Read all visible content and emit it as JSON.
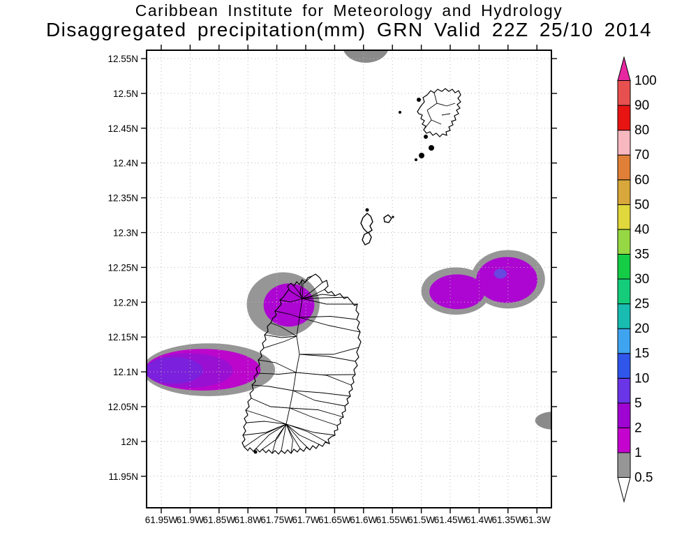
{
  "title": {
    "line1": "Caribbean Institute for Meteorology and Hydrology",
    "line2": "Disaggregated precipitation(mm) GRN Valid 22Z 25/10 2014"
  },
  "chart_data": {
    "type": "heatmap",
    "subtype": "shaded_contour_precipitation_map",
    "title": "Caribbean Institute for Meteorology and Hydrology",
    "subtitle": "Disaggregated precipitation(mm) GRN Valid 22Z 25/10 2014",
    "units": "mm",
    "grid": "dotted",
    "x_axis": {
      "labels": [
        "61.95W",
        "61.9W",
        "61.85W",
        "61.8W",
        "61.75W",
        "61.7W",
        "61.65W",
        "61.6W",
        "61.55W",
        "61.5W",
        "61.45W",
        "61.4W",
        "61.35W",
        "61.3W"
      ],
      "lon_west": [
        61.95,
        61.9,
        61.85,
        61.8,
        61.75,
        61.7,
        61.65,
        61.6,
        61.55,
        61.5,
        61.45,
        61.4,
        61.35,
        61.3
      ]
    },
    "y_axis": {
      "labels": [
        "12.55N",
        "12.5N",
        "12.45N",
        "12.4N",
        "12.35N",
        "12.3N",
        "12.25N",
        "12.2N",
        "12.15N",
        "12.1N",
        "12.05N",
        "12N",
        "11.95N"
      ],
      "lat_north": [
        12.55,
        12.5,
        12.45,
        12.4,
        12.35,
        12.3,
        12.25,
        12.2,
        12.15,
        12.1,
        12.05,
        12.0,
        11.95
      ]
    },
    "colorbar": {
      "position": "right",
      "levels": [
        "0.5",
        "1",
        "2",
        "5",
        "10",
        "15",
        "20",
        "25",
        "30",
        "35",
        "40",
        "50",
        "60",
        "70",
        "80",
        "90",
        "100"
      ],
      "colors": [
        "#969696",
        "#c404ce",
        "#a004d2",
        "#6a35e6",
        "#2f55ea",
        "#3fa4f0",
        "#18bcb0",
        "#14cc7a",
        "#14cc46",
        "#96d843",
        "#e0d83c",
        "#d8a83c",
        "#e08038",
        "#f8b8c0",
        "#e81414",
        "#e85050"
      ],
      "over_color": "#e628a0",
      "under_color": "#ffffff"
    },
    "shaded_regions": [
      {
        "name": "north-edge-trace",
        "layers": [
          {
            "level": "0.5-1",
            "color": "#8a8a8a",
            "ellipses": [
              {
                "lon": 61.596,
                "lat": 12.568,
                "rlon": 0.04,
                "rlat": 0.024
              }
            ]
          }
        ]
      },
      {
        "name": "east-edge-trace",
        "layers": [
          {
            "level": "0.5-1",
            "color": "#8a8a8a",
            "ellipses": [
              {
                "lon": 61.27,
                "lat": 12.03,
                "rlon": 0.033,
                "rlat": 0.013
              }
            ]
          }
        ]
      },
      {
        "name": "west-of-grenada",
        "layers": [
          {
            "level": "0.5-1",
            "color": "#969696",
            "ellipses": [
              {
                "lon": 61.868,
                "lat": 12.103,
                "rlon": 0.115,
                "rlat": 0.038
              }
            ]
          },
          {
            "level": "1-2",
            "color": "#bc06cc",
            "ellipses": [
              {
                "lon": 61.878,
                "lat": 12.103,
                "rlon": 0.1,
                "rlat": 0.03
              }
            ]
          },
          {
            "level": "2-5",
            "color": "#9a10d2",
            "ellipses": [
              {
                "lon": 61.902,
                "lat": 12.102,
                "rlon": 0.076,
                "rlat": 0.025
              }
            ]
          },
          {
            "level": "5-10",
            "color": "#7b20dc",
            "ellipses": [
              {
                "lon": 61.928,
                "lat": 12.102,
                "rlon": 0.05,
                "rlat": 0.019
              }
            ]
          }
        ]
      },
      {
        "name": "northwest-grenada-tip",
        "layers": [
          {
            "level": "0.5-1",
            "color": "#969696",
            "ellipses": [
              {
                "lon": 61.739,
                "lat": 12.197,
                "rlon": 0.063,
                "rlat": 0.046
              }
            ]
          },
          {
            "level": "2-5",
            "color": "#ad06d2",
            "ellipses": [
              {
                "lon": 61.729,
                "lat": 12.196,
                "rlon": 0.044,
                "rlat": 0.031
              }
            ]
          }
        ]
      },
      {
        "name": "east-of-grenada",
        "layers": [
          {
            "level": "0.5-1",
            "color": "#969696",
            "ellipses": [
              {
                "lon": 61.44,
                "lat": 12.216,
                "rlon": 0.06,
                "rlat": 0.034
              },
              {
                "lon": 61.35,
                "lat": 12.233,
                "rlon": 0.064,
                "rlat": 0.042
              }
            ]
          },
          {
            "level": "2-5",
            "color": "#ad06d2",
            "ellipses": [
              {
                "lon": 61.438,
                "lat": 12.215,
                "rlon": 0.048,
                "rlat": 0.025
              },
              {
                "lon": 61.352,
                "lat": 12.232,
                "rlon": 0.053,
                "rlat": 0.033
              }
            ]
          },
          {
            "level": "5-10",
            "color": "#6848e0",
            "ellipses": [
              {
                "lon": 61.363,
                "lat": 12.241,
                "rlon": 0.011,
                "rlat": 0.007
              }
            ]
          }
        ]
      }
    ]
  }
}
